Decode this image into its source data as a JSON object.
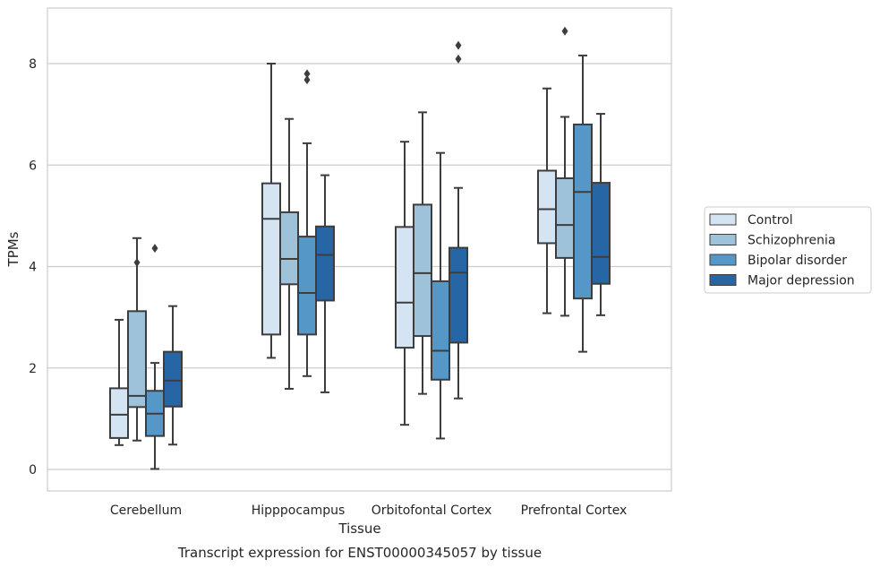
{
  "chart_data": {
    "type": "box",
    "caption": "Transcript expression for ENST00000345057 by tissue",
    "xlabel": "Tissue",
    "ylabel": "TPMs",
    "ylim": [
      -0.4,
      9.1
    ],
    "yticks": [
      0,
      2,
      4,
      6,
      8
    ],
    "grid": "horizontal",
    "legend_position": "right",
    "categories": [
      "Cerebellum",
      "Hipppocampus",
      "Orbitofontal Cortex",
      "Prefrontal Cortex"
    ],
    "series": [
      {
        "name": "Control",
        "color": "#d4e4f3",
        "boxes": [
          {
            "whislo": 0.48,
            "q1": 0.62,
            "med": 1.08,
            "q3": 1.6,
            "whishi": 2.95,
            "fliers": []
          },
          {
            "whislo": 2.2,
            "q1": 2.66,
            "med": 4.94,
            "q3": 5.64,
            "whishi": 8.0,
            "fliers": []
          },
          {
            "whislo": 0.88,
            "q1": 2.4,
            "med": 3.29,
            "q3": 4.78,
            "whishi": 6.46,
            "fliers": []
          },
          {
            "whislo": 3.08,
            "q1": 4.46,
            "med": 5.13,
            "q3": 5.89,
            "whishi": 7.51,
            "fliers": []
          }
        ]
      },
      {
        "name": "Schizophrenia",
        "color": "#9dc2da",
        "boxes": [
          {
            "whislo": 0.57,
            "q1": 1.23,
            "med": 1.45,
            "q3": 3.12,
            "whishi": 4.56,
            "fliers": [
              4.08
            ]
          },
          {
            "whislo": 1.59,
            "q1": 3.65,
            "med": 4.15,
            "q3": 5.07,
            "whishi": 6.91,
            "fliers": []
          },
          {
            "whislo": 1.49,
            "q1": 2.63,
            "med": 3.87,
            "q3": 5.22,
            "whishi": 7.04,
            "fliers": []
          },
          {
            "whislo": 3.03,
            "q1": 4.17,
            "med": 4.82,
            "q3": 5.74,
            "whishi": 6.95,
            "fliers": [
              8.64
            ]
          }
        ]
      },
      {
        "name": "Bipolar disorder",
        "color": "#5597c6",
        "boxes": [
          {
            "whislo": 0.01,
            "q1": 0.66,
            "med": 1.1,
            "q3": 1.55,
            "whishi": 2.1,
            "fliers": [
              4.36
            ]
          },
          {
            "whislo": 1.84,
            "q1": 2.66,
            "med": 3.48,
            "q3": 4.59,
            "whishi": 6.43,
            "fliers": [
              7.68,
              7.8
            ]
          },
          {
            "whislo": 0.61,
            "q1": 1.77,
            "med": 2.34,
            "q3": 3.71,
            "whishi": 6.24,
            "fliers": []
          },
          {
            "whislo": 2.32,
            "q1": 3.37,
            "med": 5.47,
            "q3": 6.8,
            "whishi": 8.16,
            "fliers": []
          }
        ]
      },
      {
        "name": "Major depression",
        "color": "#2666a5",
        "boxes": [
          {
            "whislo": 0.49,
            "q1": 1.24,
            "med": 1.75,
            "q3": 2.32,
            "whishi": 3.22,
            "fliers": []
          },
          {
            "whislo": 1.52,
            "q1": 3.33,
            "med": 4.23,
            "q3": 4.79,
            "whishi": 5.8,
            "fliers": []
          },
          {
            "whislo": 1.4,
            "q1": 2.5,
            "med": 3.88,
            "q3": 4.37,
            "whishi": 5.55,
            "fliers": [
              8.09,
              8.36
            ]
          },
          {
            "whislo": 3.04,
            "q1": 3.66,
            "med": 4.19,
            "q3": 5.65,
            "whishi": 7.01,
            "fliers": []
          }
        ]
      }
    ]
  }
}
